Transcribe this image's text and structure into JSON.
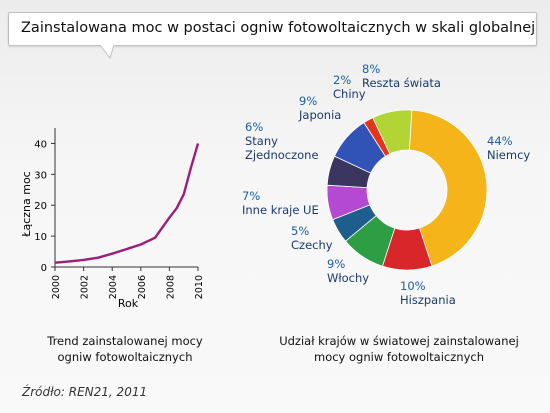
{
  "header": {
    "title": "Zainstalowana moc w postaci ogniw fotowoltaicznych w skali globalnej"
  },
  "colors": {
    "line": "#9b1f78",
    "pct_text": "#1a5fa8",
    "name_text": "#1a3a6b"
  },
  "chart_data": [
    {
      "type": "line",
      "xlabel": "Rok",
      "ylabel": "Łączna moc",
      "xlim": [
        2000,
        2010
      ],
      "ylim": [
        0,
        45
      ],
      "xticks": [
        2000,
        2002,
        2004,
        2006,
        2008,
        2010
      ],
      "yticks": [
        0,
        10,
        20,
        30,
        40
      ],
      "x": [
        2000,
        2001,
        2002,
        2003,
        2004,
        2005,
        2006,
        2007,
        2008,
        2008.5,
        2009,
        2009.5,
        2010
      ],
      "y": [
        1.4,
        1.8,
        2.3,
        3.0,
        4.3,
        5.8,
        7.3,
        9.5,
        16.0,
        19.0,
        23.5,
        32.0,
        40.0
      ],
      "caption": [
        "Trend zainstalowanej mocy",
        "ogniw fotowoltaicznych"
      ]
    },
    {
      "type": "pie",
      "style": "donut",
      "slices": [
        {
          "label": "Niemcy",
          "value": 44,
          "pct": "44%",
          "color": "#f4b41a"
        },
        {
          "label": "Hiszpania",
          "value": 10,
          "pct": "10%",
          "color": "#d8262a"
        },
        {
          "label": "Włochy",
          "value": 9,
          "pct": "9%",
          "color": "#2e9e45"
        },
        {
          "label": "Czechy",
          "value": 5,
          "pct": "5%",
          "color": "#1d5e8c"
        },
        {
          "label": "Inne kraje UE",
          "value": 7,
          "pct": "7%",
          "color": "#b54ad2"
        },
        {
          "label": "Stany Zjednoczone",
          "value": 6,
          "pct": "6%",
          "color": "#3a3660"
        },
        {
          "label": "Japonia",
          "value": 9,
          "pct": "9%",
          "color": "#3153b8"
        },
        {
          "label": "Chiny",
          "value": 2,
          "pct": "2%",
          "color": "#e3341c"
        },
        {
          "label": "Reszta świata",
          "value": 8,
          "pct": "8%",
          "color": "#b2d435"
        }
      ],
      "caption": [
        "Udział krajów w światowej zainstalowanej",
        "mocy ogniw fotowoltaicznych"
      ]
    }
  ],
  "footer": {
    "source": "Źródło: REN21, 2011"
  }
}
